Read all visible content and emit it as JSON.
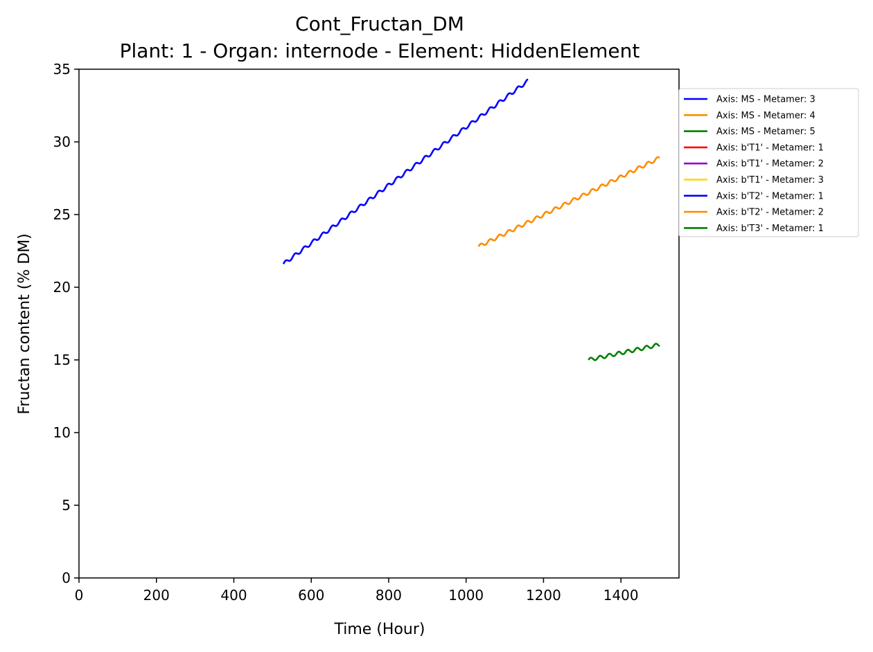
{
  "chart_data": {
    "type": "line",
    "title": "Cont_Fructan_DM",
    "subtitle": "Plant: 1 - Organ: internode - Element: HiddenElement",
    "xlabel": "Time (Hour)",
    "ylabel": "Fructan content (% DM)",
    "xlim": [
      0,
      1550
    ],
    "ylim": [
      0,
      35
    ],
    "x_ticks": [
      0,
      200,
      400,
      600,
      800,
      1000,
      1200,
      1400
    ],
    "y_ticks": [
      0,
      5,
      10,
      15,
      20,
      25,
      30,
      35
    ],
    "x_tick_labels": [
      "0",
      "200",
      "400",
      "600",
      "800",
      "1000",
      "1200",
      "1400"
    ],
    "y_tick_labels": [
      "0",
      "5",
      "10",
      "15",
      "20",
      "25",
      "30",
      "35"
    ],
    "grid": false,
    "legend_placement": "outside top-right",
    "series": [
      {
        "name": "Axis: MS - Metamer: 3",
        "color": "#0000ff",
        "x": [
          528,
          1160
        ],
        "y": [
          21.6,
          34.2
        ],
        "wiggle": true
      },
      {
        "name": "Axis: MS - Metamer: 4",
        "color": "#ff8c00",
        "x": [
          1032,
          1500
        ],
        "y": [
          22.8,
          28.9
        ],
        "wiggle": true
      },
      {
        "name": "Axis: MS - Metamer: 5",
        "color": "#008000",
        "x": [
          1316,
          1500
        ],
        "y": [
          15.0,
          16.05
        ],
        "wiggle": true
      },
      {
        "name": "Axis: b'T1' - Metamer: 1",
        "color": "#ff0000",
        "x": [],
        "y": []
      },
      {
        "name": "Axis: b'T1' - Metamer: 2",
        "color": "#9400d3",
        "x": [],
        "y": []
      },
      {
        "name": "Axis: b'T1' - Metamer: 3",
        "color": "#ffd700",
        "x": [],
        "y": []
      },
      {
        "name": "Axis: b'T2' - Metamer: 1",
        "color": "#0000ff",
        "x": [],
        "y": []
      },
      {
        "name": "Axis: b'T2' - Metamer: 2",
        "color": "#ff8c00",
        "x": [],
        "y": []
      },
      {
        "name": "Axis: b'T3' - Metamer: 1",
        "color": "#008000",
        "x": [],
        "y": []
      }
    ]
  }
}
